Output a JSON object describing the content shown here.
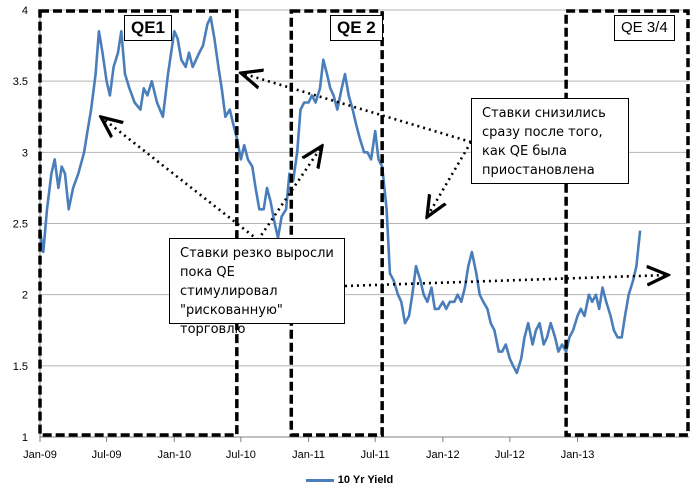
{
  "chart_data": {
    "type": "line",
    "title": "",
    "xlabel": "",
    "ylabel": "",
    "ylim": [
      1,
      4
    ],
    "yticks": [
      "1",
      "1.5",
      "2",
      "2.5",
      "3",
      "3.5",
      "4"
    ],
    "xlim": [
      "2009-01-01",
      "2013-10-31"
    ],
    "xticks": [
      {
        "label": "Jan-09",
        "date": "2009-01-01"
      },
      {
        "label": "Jul-09",
        "date": "2009-07-01"
      },
      {
        "label": "Jan-10",
        "date": "2010-01-01"
      },
      {
        "label": "Jul-10",
        "date": "2010-07-01"
      },
      {
        "label": "Jan-11",
        "date": "2011-01-01"
      },
      {
        "label": "Jul-11",
        "date": "2011-07-01"
      },
      {
        "label": "Jan-12",
        "date": "2012-01-01"
      },
      {
        "label": "Jul-12",
        "date": "2012-07-01"
      },
      {
        "label": "Jan-13",
        "date": "2013-01-01"
      }
    ],
    "grid": "horizontal",
    "legend_position": "bottom",
    "series": [
      {
        "name": "10 Yr Yield",
        "color": "#4a7ebb",
        "points": [
          [
            "2009-01-01",
            2.45
          ],
          [
            "2009-01-10",
            2.3
          ],
          [
            "2009-01-20",
            2.6
          ],
          [
            "2009-02-01",
            2.85
          ],
          [
            "2009-02-10",
            2.95
          ],
          [
            "2009-02-20",
            2.75
          ],
          [
            "2009-03-01",
            2.9
          ],
          [
            "2009-03-10",
            2.85
          ],
          [
            "2009-03-20",
            2.6
          ],
          [
            "2009-04-01",
            2.75
          ],
          [
            "2009-04-15",
            2.85
          ],
          [
            "2009-05-01",
            3.0
          ],
          [
            "2009-05-10",
            3.15
          ],
          [
            "2009-05-20",
            3.3
          ],
          [
            "2009-06-01",
            3.55
          ],
          [
            "2009-06-10",
            3.85
          ],
          [
            "2009-06-20",
            3.7
          ],
          [
            "2009-07-01",
            3.5
          ],
          [
            "2009-07-10",
            3.4
          ],
          [
            "2009-07-20",
            3.6
          ],
          [
            "2009-08-01",
            3.7
          ],
          [
            "2009-08-10",
            3.85
          ],
          [
            "2009-08-20",
            3.55
          ],
          [
            "2009-09-01",
            3.45
          ],
          [
            "2009-09-15",
            3.35
          ],
          [
            "2009-10-01",
            3.3
          ],
          [
            "2009-10-10",
            3.45
          ],
          [
            "2009-10-20",
            3.4
          ],
          [
            "2009-11-01",
            3.5
          ],
          [
            "2009-11-15",
            3.35
          ],
          [
            "2009-12-01",
            3.25
          ],
          [
            "2009-12-15",
            3.55
          ],
          [
            "2010-01-01",
            3.85
          ],
          [
            "2010-01-10",
            3.8
          ],
          [
            "2010-01-20",
            3.65
          ],
          [
            "2010-02-01",
            3.6
          ],
          [
            "2010-02-10",
            3.7
          ],
          [
            "2010-02-20",
            3.6
          ],
          [
            "2010-03-01",
            3.65
          ],
          [
            "2010-03-10",
            3.7
          ],
          [
            "2010-03-20",
            3.75
          ],
          [
            "2010-04-01",
            3.9
          ],
          [
            "2010-04-10",
            3.95
          ],
          [
            "2010-04-20",
            3.8
          ],
          [
            "2010-05-01",
            3.6
          ],
          [
            "2010-05-10",
            3.45
          ],
          [
            "2010-05-20",
            3.25
          ],
          [
            "2010-06-01",
            3.3
          ],
          [
            "2010-06-10",
            3.2
          ],
          [
            "2010-06-20",
            3.1
          ],
          [
            "2010-07-01",
            2.95
          ],
          [
            "2010-07-10",
            3.05
          ],
          [
            "2010-07-20",
            2.95
          ],
          [
            "2010-08-01",
            2.9
          ],
          [
            "2010-08-10",
            2.75
          ],
          [
            "2010-08-20",
            2.6
          ],
          [
            "2010-09-01",
            2.6
          ],
          [
            "2010-09-10",
            2.75
          ],
          [
            "2010-09-20",
            2.65
          ],
          [
            "2010-10-01",
            2.5
          ],
          [
            "2010-10-10",
            2.4
          ],
          [
            "2010-10-20",
            2.55
          ],
          [
            "2010-11-01",
            2.6
          ],
          [
            "2010-11-10",
            2.85
          ],
          [
            "2010-11-20",
            2.8
          ],
          [
            "2010-12-01",
            3.0
          ],
          [
            "2010-12-10",
            3.3
          ],
          [
            "2010-12-20",
            3.35
          ],
          [
            "2011-01-01",
            3.35
          ],
          [
            "2011-01-10",
            3.4
          ],
          [
            "2011-01-20",
            3.35
          ],
          [
            "2011-02-01",
            3.45
          ],
          [
            "2011-02-10",
            3.65
          ],
          [
            "2011-02-20",
            3.55
          ],
          [
            "2011-03-01",
            3.45
          ],
          [
            "2011-03-10",
            3.4
          ],
          [
            "2011-03-20",
            3.3
          ],
          [
            "2011-04-01",
            3.45
          ],
          [
            "2011-04-10",
            3.55
          ],
          [
            "2011-04-20",
            3.4
          ],
          [
            "2011-05-01",
            3.3
          ],
          [
            "2011-05-10",
            3.2
          ],
          [
            "2011-05-20",
            3.1
          ],
          [
            "2011-06-01",
            3.0
          ],
          [
            "2011-06-10",
            3.0
          ],
          [
            "2011-06-20",
            2.95
          ],
          [
            "2011-07-01",
            3.15
          ],
          [
            "2011-07-10",
            2.95
          ],
          [
            "2011-07-20",
            2.9
          ],
          [
            "2011-08-01",
            2.6
          ],
          [
            "2011-08-10",
            2.15
          ],
          [
            "2011-08-20",
            2.1
          ],
          [
            "2011-09-01",
            2.0
          ],
          [
            "2011-09-10",
            1.95
          ],
          [
            "2011-09-20",
            1.8
          ],
          [
            "2011-10-01",
            1.85
          ],
          [
            "2011-10-10",
            2.0
          ],
          [
            "2011-10-20",
            2.2
          ],
          [
            "2011-11-01",
            2.1
          ],
          [
            "2011-11-10",
            2.0
          ],
          [
            "2011-11-20",
            1.95
          ],
          [
            "2011-12-01",
            2.05
          ],
          [
            "2011-12-10",
            1.9
          ],
          [
            "2011-12-20",
            1.9
          ],
          [
            "2012-01-01",
            1.95
          ],
          [
            "2012-01-10",
            1.9
          ],
          [
            "2012-01-20",
            1.95
          ],
          [
            "2012-02-01",
            1.95
          ],
          [
            "2012-02-10",
            2.0
          ],
          [
            "2012-02-20",
            1.95
          ],
          [
            "2012-03-01",
            2.05
          ],
          [
            "2012-03-10",
            2.2
          ],
          [
            "2012-03-20",
            2.3
          ],
          [
            "2012-04-01",
            2.15
          ],
          [
            "2012-04-10",
            2.0
          ],
          [
            "2012-04-20",
            1.95
          ],
          [
            "2012-05-01",
            1.9
          ],
          [
            "2012-05-10",
            1.8
          ],
          [
            "2012-05-20",
            1.75
          ],
          [
            "2012-06-01",
            1.6
          ],
          [
            "2012-06-10",
            1.6
          ],
          [
            "2012-06-20",
            1.65
          ],
          [
            "2012-07-01",
            1.55
          ],
          [
            "2012-07-10",
            1.5
          ],
          [
            "2012-07-20",
            1.45
          ],
          [
            "2012-08-01",
            1.55
          ],
          [
            "2012-08-10",
            1.7
          ],
          [
            "2012-08-20",
            1.8
          ],
          [
            "2012-09-01",
            1.65
          ],
          [
            "2012-09-10",
            1.75
          ],
          [
            "2012-09-20",
            1.8
          ],
          [
            "2012-10-01",
            1.65
          ],
          [
            "2012-10-10",
            1.7
          ],
          [
            "2012-10-20",
            1.8
          ],
          [
            "2012-11-01",
            1.7
          ],
          [
            "2012-11-10",
            1.6
          ],
          [
            "2012-11-20",
            1.65
          ],
          [
            "2012-12-01",
            1.6
          ],
          [
            "2012-12-10",
            1.7
          ],
          [
            "2012-12-20",
            1.75
          ],
          [
            "2013-01-01",
            1.85
          ],
          [
            "2013-01-10",
            1.9
          ],
          [
            "2013-01-20",
            1.85
          ],
          [
            "2013-02-01",
            2.0
          ],
          [
            "2013-02-10",
            1.95
          ],
          [
            "2013-02-20",
            2.0
          ],
          [
            "2013-03-01",
            1.9
          ],
          [
            "2013-03-10",
            2.05
          ],
          [
            "2013-03-20",
            1.95
          ],
          [
            "2013-04-01",
            1.85
          ],
          [
            "2013-04-10",
            1.75
          ],
          [
            "2013-04-20",
            1.7
          ],
          [
            "2013-05-01",
            1.7
          ],
          [
            "2013-05-10",
            1.85
          ],
          [
            "2013-05-20",
            2.0
          ],
          [
            "2013-06-01",
            2.1
          ],
          [
            "2013-06-10",
            2.2
          ],
          [
            "2013-06-20",
            2.45
          ]
        ]
      }
    ],
    "regions": [
      {
        "label": "QE1",
        "start": "2009-01-01",
        "end": "2010-06-20"
      },
      {
        "label": "QE 2",
        "start": "2010-11-15",
        "end": "2011-07-20"
      },
      {
        "label": "QE 3/4",
        "start": "2012-12-01",
        "end": "2013-10-31"
      }
    ],
    "annotations": [
      {
        "text": "Ставки снизились\nсразу после того,\nкак QE была\nприостановлена"
      },
      {
        "text": "Ставки резко выросли\nпока QE стимулировал\n\"рискованную\"\nторговлю"
      }
    ]
  }
}
